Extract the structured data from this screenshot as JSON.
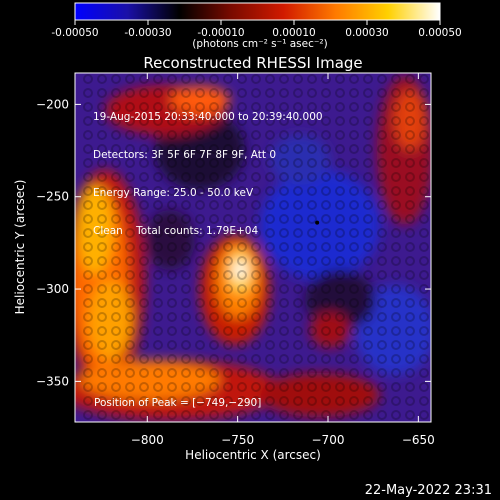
{
  "colorbar": {
    "ticks": [
      "-0.00050",
      "-0.00030",
      "-0.00010",
      "0.00010",
      "0.00030",
      "0.00050"
    ],
    "tick_values": [
      -0.0005,
      -0.0003,
      -0.0001,
      0.0001,
      0.0003,
      0.0005
    ],
    "range": [
      -0.0005,
      0.0005
    ],
    "units_label": "(photons cm⁻² s⁻¹ asec⁻²)",
    "stops": [
      "#0000ff",
      "#1a10a8",
      "#000000",
      "#7a0a00",
      "#d11a00",
      "#ff7a00",
      "#ffd000",
      "#ffffff"
    ]
  },
  "chart_data": {
    "type": "heatmap",
    "title": "Reconstructed RHESSI Image",
    "xlabel": "Heliocentric X (arcsec)",
    "ylabel": "Heliocentric Y (arcsec)",
    "xlim": [
      -840,
      -643
    ],
    "ylim": [
      -372,
      -183
    ],
    "x_ticks": [
      -800,
      -750,
      -700,
      -650
    ],
    "y_ticks": [
      -200,
      -250,
      -300,
      -350
    ],
    "x_tick_labels": [
      "−800",
      "−750",
      "−700",
      "−650"
    ],
    "y_tick_labels": [
      "−200",
      "−250",
      "−300",
      "−350"
    ],
    "peak_position": [
      -749,
      -290
    ],
    "info_lines": [
      "19-Aug-2015 20:33:40.000 to 20:39:40.000",
      "Detectors: 3F 5F 6F 7F 8F 9F, Att 0",
      "Energy Range: 25.0 - 50.0 keV",
      "Clean    Total counts: 1.79E+04"
    ],
    "peak_label": "Position of Peak = [−749,−290]",
    "marker_position": [
      -706,
      -264
    ]
  },
  "footer": {
    "timestamp": "22-May-2022 23:31"
  }
}
